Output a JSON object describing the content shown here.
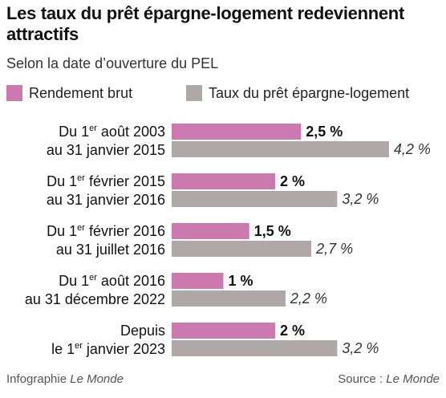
{
  "title": "Les taux du prêt épargne-logement redeviennent attractifs",
  "subtitle": "Selon la date d’ouverture du PEL",
  "colors": {
    "rendement": "#cc79b0",
    "taux": "#b0a8a8"
  },
  "footer": {
    "credit_prefix": "Infographie ",
    "credit_name": "Le Monde",
    "source_prefix": "Source : ",
    "source_name": "Le Monde"
  },
  "chart_data": {
    "type": "bar",
    "orientation": "horizontal",
    "grid": false,
    "legend_position": "top",
    "unit": "%",
    "categories": [
      {
        "line1_pre": "Du 1",
        "line1_sup": "er",
        "line1_post": " août 2003",
        "line2": "au 31 janvier 2015"
      },
      {
        "line1_pre": "Du 1",
        "line1_sup": "er",
        "line1_post": "  février 2015",
        "line2": "au 31 janvier 2016"
      },
      {
        "line1_pre": "Du 1",
        "line1_sup": "er",
        "line1_post": "  février 2016",
        "line2": "au 31 juillet 2016"
      },
      {
        "line1_pre": "Du 1",
        "line1_sup": "er",
        "line1_post": " août 2016",
        "line2": "au 31 décembre 2022"
      },
      {
        "line1_pre": "Depuis",
        "line1_sup": "",
        "line1_post": "",
        "line2_pre": "le 1",
        "line2_sup": "er",
        "line2_post": " janvier 2023"
      }
    ],
    "series": [
      {
        "name": "Rendement brut",
        "values": [
          2.5,
          2,
          1.5,
          1,
          2
        ],
        "labels": [
          "2,5 %",
          "2 %",
          "1,5 %",
          "1 %",
          "2 %"
        ]
      },
      {
        "name": "Taux du prêt épargne-logement",
        "values": [
          4.2,
          3.2,
          2.7,
          2.2,
          3.2
        ],
        "labels": [
          "4,2 %",
          "3,2 %",
          "2,7 %",
          "2,2 %",
          "3,2 %"
        ]
      }
    ]
  }
}
